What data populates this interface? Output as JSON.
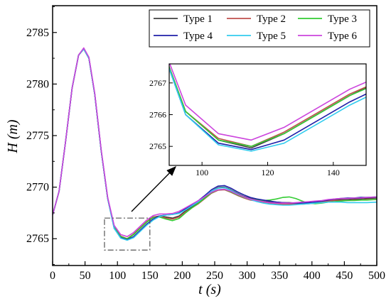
{
  "chart_data": {
    "type": "line",
    "xlabel": "t (s)",
    "ylabel": "H (m)",
    "xlim": [
      0,
      500
    ],
    "ylim": [
      2762.4,
      2787.6
    ],
    "xticks": [
      0,
      50,
      100,
      150,
      200,
      250,
      300,
      350,
      400,
      450,
      500
    ],
    "yticks": [
      2765,
      2770,
      2775,
      2780,
      2785
    ],
    "grid": false,
    "legend_position": "top-right",
    "legend_columns": 3,
    "series": [
      {
        "name": "Type 1",
        "color": "#404040",
        "x": [
          0,
          10,
          20,
          30,
          40,
          48,
          56,
          65,
          75,
          85,
          95,
          105,
          115,
          125,
          135,
          145,
          155,
          165,
          175,
          185,
          195,
          205,
          215,
          225,
          235,
          245,
          255,
          265,
          275,
          285,
          295,
          305,
          315,
          325,
          335,
          345,
          355,
          365,
          375,
          385,
          395,
          405,
          415,
          425,
          435,
          445,
          455,
          465,
          475,
          485,
          500
        ],
        "y": [
          2767.3,
          2769.6,
          2774.4,
          2779.6,
          2782.8,
          2783.4,
          2782.5,
          2779.0,
          2773.5,
          2768.9,
          2766.1,
          2765.2,
          2764.95,
          2765.4,
          2766.0,
          2766.6,
          2767.1,
          2767.2,
          2767.1,
          2767.0,
          2767.2,
          2767.7,
          2768.1,
          2768.5,
          2769.0,
          2769.6,
          2769.95,
          2770.0,
          2769.75,
          2769.4,
          2769.1,
          2768.9,
          2768.8,
          2768.7,
          2768.6,
          2768.55,
          2768.5,
          2768.5,
          2768.45,
          2768.45,
          2768.45,
          2768.5,
          2768.6,
          2768.7,
          2768.75,
          2768.8,
          2768.8,
          2768.85,
          2768.85,
          2768.9,
          2768.95
        ]
      },
      {
        "name": "Type 2",
        "color": "#c0504d",
        "x": [
          0,
          10,
          20,
          30,
          40,
          48,
          56,
          65,
          75,
          85,
          95,
          105,
          115,
          125,
          135,
          145,
          155,
          165,
          175,
          185,
          195,
          205,
          215,
          225,
          235,
          245,
          255,
          265,
          275,
          285,
          295,
          305,
          315,
          325,
          335,
          345,
          355,
          365,
          375,
          385,
          395,
          405,
          415,
          425,
          435,
          445,
          455,
          465,
          475,
          485,
          500
        ],
        "y": [
          2767.3,
          2769.6,
          2774.4,
          2779.6,
          2782.8,
          2783.4,
          2782.5,
          2779.0,
          2773.5,
          2768.9,
          2766.1,
          2765.25,
          2765.0,
          2765.45,
          2766.05,
          2766.65,
          2767.1,
          2767.15,
          2767.0,
          2766.9,
          2767.1,
          2767.6,
          2768.0,
          2768.4,
          2768.9,
          2769.4,
          2769.7,
          2769.75,
          2769.5,
          2769.2,
          2768.95,
          2768.75,
          2768.65,
          2768.55,
          2768.45,
          2768.4,
          2768.35,
          2768.35,
          2768.35,
          2768.35,
          2768.4,
          2768.45,
          2768.55,
          2768.65,
          2768.7,
          2768.7,
          2768.7,
          2768.75,
          2768.75,
          2768.8,
          2768.8
        ]
      },
      {
        "name": "Type 3",
        "color": "#33cc33",
        "x": [
          0,
          10,
          20,
          30,
          40,
          48,
          56,
          65,
          75,
          85,
          95,
          105,
          115,
          125,
          135,
          145,
          155,
          165,
          175,
          185,
          195,
          205,
          215,
          225,
          235,
          245,
          255,
          265,
          275,
          285,
          295,
          305,
          315,
          325,
          335,
          345,
          355,
          365,
          375,
          385,
          395,
          405,
          415,
          425,
          435,
          445,
          455,
          465,
          475,
          485,
          500
        ],
        "y": [
          2767.3,
          2769.6,
          2774.4,
          2779.6,
          2782.8,
          2783.4,
          2782.5,
          2779.0,
          2773.5,
          2768.9,
          2766.1,
          2765.2,
          2765.0,
          2765.4,
          2766.0,
          2766.6,
          2767.05,
          2767.1,
          2766.9,
          2766.75,
          2766.95,
          2767.5,
          2768.0,
          2768.45,
          2768.95,
          2769.45,
          2769.75,
          2769.8,
          2769.55,
          2769.25,
          2769.0,
          2768.85,
          2768.75,
          2768.7,
          2768.75,
          2768.85,
          2769.0,
          2769.05,
          2768.9,
          2768.65,
          2768.45,
          2768.4,
          2768.45,
          2768.55,
          2768.6,
          2768.65,
          2768.7,
          2768.7,
          2768.75,
          2768.75,
          2768.8
        ]
      },
      {
        "name": "Type 4",
        "color": "#1f1fa8",
        "x": [
          0,
          10,
          20,
          30,
          40,
          48,
          56,
          65,
          75,
          85,
          95,
          105,
          115,
          125,
          135,
          145,
          155,
          165,
          175,
          185,
          195,
          205,
          215,
          225,
          235,
          245,
          255,
          265,
          275,
          285,
          295,
          305,
          315,
          325,
          335,
          345,
          355,
          365,
          375,
          385,
          395,
          405,
          415,
          425,
          435,
          445,
          455,
          465,
          475,
          485,
          500
        ],
        "y": [
          2767.3,
          2769.6,
          2774.4,
          2779.6,
          2782.8,
          2783.4,
          2782.5,
          2779.0,
          2773.5,
          2768.9,
          2766.0,
          2765.1,
          2764.9,
          2765.2,
          2765.8,
          2766.4,
          2766.9,
          2767.2,
          2767.3,
          2767.35,
          2767.5,
          2767.9,
          2768.3,
          2768.7,
          2769.2,
          2769.75,
          2770.1,
          2770.15,
          2769.9,
          2769.55,
          2769.25,
          2769.0,
          2768.85,
          2768.75,
          2768.65,
          2768.55,
          2768.5,
          2768.45,
          2768.45,
          2768.45,
          2768.5,
          2768.55,
          2768.65,
          2768.75,
          2768.85,
          2768.9,
          2768.95,
          2768.95,
          2769.0,
          2769.0,
          2769.05
        ]
      },
      {
        "name": "Type 5",
        "color": "#33ccee",
        "x": [
          0,
          10,
          20,
          30,
          40,
          48,
          56,
          65,
          75,
          85,
          95,
          105,
          115,
          125,
          135,
          145,
          155,
          165,
          175,
          185,
          195,
          205,
          215,
          225,
          235,
          245,
          255,
          265,
          275,
          285,
          295,
          305,
          315,
          325,
          335,
          345,
          355,
          365,
          375,
          385,
          395,
          405,
          415,
          425,
          435,
          445,
          455,
          465,
          475,
          485,
          500
        ],
        "y": [
          2767.3,
          2769.6,
          2774.4,
          2779.6,
          2782.8,
          2783.4,
          2782.5,
          2779.0,
          2773.5,
          2768.9,
          2766.0,
          2765.05,
          2764.85,
          2765.1,
          2765.7,
          2766.3,
          2766.8,
          2767.15,
          2767.3,
          2767.35,
          2767.45,
          2767.8,
          2768.2,
          2768.6,
          2769.1,
          2769.6,
          2769.9,
          2769.95,
          2769.7,
          2769.35,
          2769.05,
          2768.8,
          2768.6,
          2768.45,
          2768.35,
          2768.3,
          2768.25,
          2768.25,
          2768.3,
          2768.35,
          2768.4,
          2768.45,
          2768.5,
          2768.55,
          2768.55,
          2768.55,
          2768.5,
          2768.5,
          2768.5,
          2768.5,
          2768.55
        ]
      },
      {
        "name": "Type 6",
        "color": "#cc44dd",
        "x": [
          0,
          10,
          20,
          30,
          40,
          48,
          56,
          65,
          75,
          85,
          95,
          105,
          115,
          125,
          135,
          145,
          155,
          165,
          175,
          185,
          195,
          205,
          215,
          225,
          235,
          245,
          255,
          265,
          275,
          285,
          295,
          305,
          315,
          325,
          335,
          345,
          355,
          365,
          375,
          385,
          395,
          405,
          415,
          425,
          435,
          445,
          455,
          465,
          475,
          485,
          500
        ],
        "y": [
          2767.3,
          2769.6,
          2774.4,
          2779.6,
          2782.8,
          2783.5,
          2782.6,
          2779.1,
          2773.6,
          2769.0,
          2766.3,
          2765.4,
          2765.2,
          2765.6,
          2766.2,
          2766.8,
          2767.25,
          2767.4,
          2767.4,
          2767.45,
          2767.65,
          2768.0,
          2768.35,
          2768.7,
          2769.1,
          2769.5,
          2769.75,
          2769.8,
          2769.6,
          2769.3,
          2769.05,
          2768.85,
          2768.7,
          2768.6,
          2768.5,
          2768.45,
          2768.45,
          2768.45,
          2768.5,
          2768.55,
          2768.6,
          2768.65,
          2768.7,
          2768.8,
          2768.85,
          2768.9,
          2768.9,
          2768.95,
          2768.95,
          2769.0,
          2769.05
        ]
      }
    ],
    "inset": {
      "xlim": [
        90,
        150
      ],
      "ylim": [
        2764.4,
        2767.6
      ],
      "xticks": [
        100,
        120,
        140
      ],
      "yticks": [
        2765,
        2766,
        2767
      ],
      "focus_xlim": [
        80,
        150
      ],
      "focus_ylim": [
        2763.9,
        2767.0
      ]
    }
  }
}
